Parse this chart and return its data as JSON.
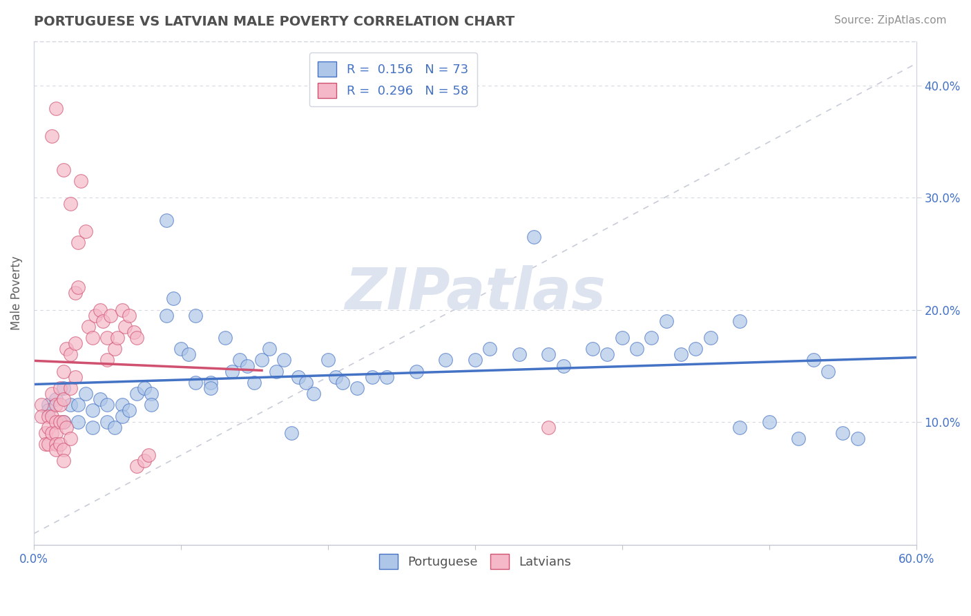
{
  "title": "PORTUGUESE VS LATVIAN MALE POVERTY CORRELATION CHART",
  "source": "Source: ZipAtlas.com",
  "ylabel": "Male Poverty",
  "xlim": [
    0.0,
    0.6
  ],
  "ylim": [
    -0.01,
    0.44
  ],
  "xticks": [
    0.0,
    0.1,
    0.2,
    0.3,
    0.4,
    0.5,
    0.6
  ],
  "xticklabels": [
    "0.0%",
    "",
    "",
    "",
    "",
    "",
    "60.0%"
  ],
  "yticks": [
    0.1,
    0.2,
    0.3,
    0.4
  ],
  "yticklabels": [
    "10.0%",
    "20.0%",
    "30.0%",
    "40.0%"
  ],
  "blue_color": "#aec6e8",
  "pink_color": "#f5b8c8",
  "blue_line_color": "#4472c4",
  "pink_line_color": "#d05070",
  "dashed_line_color": "#c8ccd8",
  "title_color": "#505050",
  "source_color": "#909090",
  "blue_scatter": [
    [
      0.01,
      0.115
    ],
    [
      0.01,
      0.11
    ],
    [
      0.015,
      0.12
    ],
    [
      0.02,
      0.13
    ],
    [
      0.02,
      0.1
    ],
    [
      0.025,
      0.115
    ],
    [
      0.03,
      0.1
    ],
    [
      0.03,
      0.115
    ],
    [
      0.035,
      0.125
    ],
    [
      0.04,
      0.11
    ],
    [
      0.04,
      0.095
    ],
    [
      0.045,
      0.12
    ],
    [
      0.05,
      0.115
    ],
    [
      0.05,
      0.1
    ],
    [
      0.055,
      0.095
    ],
    [
      0.06,
      0.115
    ],
    [
      0.06,
      0.105
    ],
    [
      0.065,
      0.11
    ],
    [
      0.07,
      0.125
    ],
    [
      0.075,
      0.13
    ],
    [
      0.08,
      0.125
    ],
    [
      0.08,
      0.115
    ],
    [
      0.09,
      0.28
    ],
    [
      0.09,
      0.195
    ],
    [
      0.095,
      0.21
    ],
    [
      0.1,
      0.165
    ],
    [
      0.105,
      0.16
    ],
    [
      0.11,
      0.195
    ],
    [
      0.11,
      0.135
    ],
    [
      0.12,
      0.135
    ],
    [
      0.12,
      0.13
    ],
    [
      0.13,
      0.175
    ],
    [
      0.135,
      0.145
    ],
    [
      0.14,
      0.155
    ],
    [
      0.145,
      0.15
    ],
    [
      0.15,
      0.135
    ],
    [
      0.155,
      0.155
    ],
    [
      0.16,
      0.165
    ],
    [
      0.165,
      0.145
    ],
    [
      0.17,
      0.155
    ],
    [
      0.175,
      0.09
    ],
    [
      0.18,
      0.14
    ],
    [
      0.185,
      0.135
    ],
    [
      0.19,
      0.125
    ],
    [
      0.2,
      0.155
    ],
    [
      0.205,
      0.14
    ],
    [
      0.21,
      0.135
    ],
    [
      0.22,
      0.13
    ],
    [
      0.23,
      0.14
    ],
    [
      0.24,
      0.14
    ],
    [
      0.26,
      0.145
    ],
    [
      0.28,
      0.155
    ],
    [
      0.3,
      0.155
    ],
    [
      0.31,
      0.165
    ],
    [
      0.33,
      0.16
    ],
    [
      0.34,
      0.265
    ],
    [
      0.35,
      0.16
    ],
    [
      0.36,
      0.15
    ],
    [
      0.38,
      0.165
    ],
    [
      0.39,
      0.16
    ],
    [
      0.4,
      0.175
    ],
    [
      0.41,
      0.165
    ],
    [
      0.42,
      0.175
    ],
    [
      0.43,
      0.19
    ],
    [
      0.44,
      0.16
    ],
    [
      0.45,
      0.165
    ],
    [
      0.46,
      0.175
    ],
    [
      0.48,
      0.19
    ],
    [
      0.48,
      0.095
    ],
    [
      0.5,
      0.1
    ],
    [
      0.52,
      0.085
    ],
    [
      0.53,
      0.155
    ],
    [
      0.54,
      0.145
    ],
    [
      0.55,
      0.09
    ],
    [
      0.56,
      0.085
    ]
  ],
  "pink_scatter": [
    [
      0.005,
      0.115
    ],
    [
      0.005,
      0.105
    ],
    [
      0.008,
      0.09
    ],
    [
      0.008,
      0.08
    ],
    [
      0.01,
      0.105
    ],
    [
      0.01,
      0.095
    ],
    [
      0.01,
      0.08
    ],
    [
      0.012,
      0.125
    ],
    [
      0.012,
      0.105
    ],
    [
      0.012,
      0.09
    ],
    [
      0.015,
      0.115
    ],
    [
      0.015,
      0.1
    ],
    [
      0.015,
      0.09
    ],
    [
      0.015,
      0.08
    ],
    [
      0.015,
      0.075
    ],
    [
      0.018,
      0.13
    ],
    [
      0.018,
      0.115
    ],
    [
      0.018,
      0.1
    ],
    [
      0.018,
      0.08
    ],
    [
      0.02,
      0.145
    ],
    [
      0.02,
      0.12
    ],
    [
      0.02,
      0.1
    ],
    [
      0.02,
      0.075
    ],
    [
      0.02,
      0.065
    ],
    [
      0.022,
      0.165
    ],
    [
      0.022,
      0.095
    ],
    [
      0.025,
      0.16
    ],
    [
      0.025,
      0.13
    ],
    [
      0.025,
      0.085
    ],
    [
      0.028,
      0.215
    ],
    [
      0.028,
      0.17
    ],
    [
      0.028,
      0.14
    ],
    [
      0.03,
      0.26
    ],
    [
      0.03,
      0.22
    ],
    [
      0.032,
      0.315
    ],
    [
      0.035,
      0.27
    ],
    [
      0.037,
      0.185
    ],
    [
      0.04,
      0.175
    ],
    [
      0.042,
      0.195
    ],
    [
      0.045,
      0.2
    ],
    [
      0.047,
      0.19
    ],
    [
      0.05,
      0.175
    ],
    [
      0.05,
      0.155
    ],
    [
      0.052,
      0.195
    ],
    [
      0.055,
      0.165
    ],
    [
      0.057,
      0.175
    ],
    [
      0.06,
      0.2
    ],
    [
      0.062,
      0.185
    ],
    [
      0.065,
      0.195
    ],
    [
      0.068,
      0.18
    ],
    [
      0.07,
      0.175
    ],
    [
      0.07,
      0.06
    ],
    [
      0.075,
      0.065
    ],
    [
      0.078,
      0.07
    ],
    [
      0.015,
      0.38
    ],
    [
      0.012,
      0.355
    ],
    [
      0.02,
      0.325
    ],
    [
      0.025,
      0.295
    ],
    [
      0.35,
      0.095
    ]
  ],
  "watermark": "ZIPatlas",
  "watermark_color": "#dde4f0",
  "pink_trend_xrange": [
    0.0,
    0.155
  ],
  "blue_trend_xrange": [
    0.0,
    0.6
  ]
}
